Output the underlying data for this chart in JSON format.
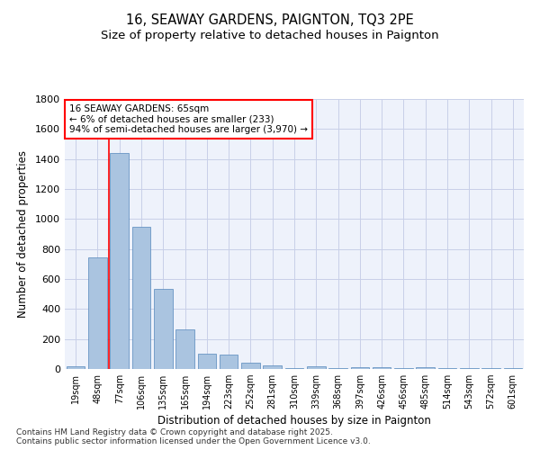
{
  "title": "16, SEAWAY GARDENS, PAIGNTON, TQ3 2PE",
  "subtitle": "Size of property relative to detached houses in Paignton",
  "xlabel": "Distribution of detached houses by size in Paignton",
  "ylabel": "Number of detached properties",
  "categories": [
    "19sqm",
    "48sqm",
    "77sqm",
    "106sqm",
    "135sqm",
    "165sqm",
    "194sqm",
    "223sqm",
    "252sqm",
    "281sqm",
    "310sqm",
    "339sqm",
    "368sqm",
    "397sqm",
    "426sqm",
    "456sqm",
    "485sqm",
    "514sqm",
    "543sqm",
    "572sqm",
    "601sqm"
  ],
  "values": [
    20,
    745,
    1440,
    950,
    535,
    265,
    105,
    95,
    40,
    25,
    5,
    20,
    5,
    15,
    10,
    5,
    15,
    5,
    5,
    5,
    5
  ],
  "bar_color": "#aac4e0",
  "bar_edge_color": "#5588bb",
  "vline_x": 1.5,
  "vline_color": "red",
  "annotation_text": "16 SEAWAY GARDENS: 65sqm\n← 6% of detached houses are smaller (233)\n94% of semi-detached houses are larger (3,970) →",
  "annotation_box_color": "red",
  "ylim": [
    0,
    1800
  ],
  "yticks": [
    0,
    200,
    400,
    600,
    800,
    1000,
    1200,
    1400,
    1600,
    1800
  ],
  "footer": "Contains HM Land Registry data © Crown copyright and database right 2025.\nContains public sector information licensed under the Open Government Licence v3.0.",
  "bg_color": "#eef2fb",
  "grid_color": "#c8cfe8",
  "title_fontsize": 10.5,
  "subtitle_fontsize": 9.5,
  "axis_label_fontsize": 8.5,
  "tick_fontsize": 7,
  "annotation_fontsize": 7.5,
  "footer_fontsize": 6.5
}
